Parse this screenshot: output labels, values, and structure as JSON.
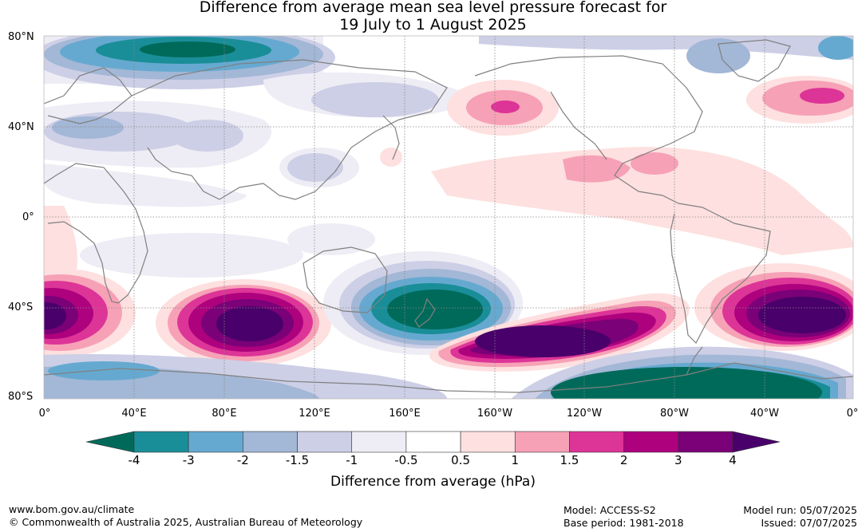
{
  "title": {
    "line1": "Difference from average mean sea level pressure forecast for",
    "line2": "19 July to 1 August 2025"
  },
  "map": {
    "projection": "equirectangular",
    "lat_labels": [
      "80°N",
      "40°N",
      "0°",
      "40°S",
      "80°S"
    ],
    "lon_labels": [
      "0°",
      "40°E",
      "80°E",
      "120°E",
      "160°E",
      "160°W",
      "120°W",
      "80°W",
      "40°W",
      "0°"
    ],
    "grid": true,
    "coastline_color": "#808080",
    "anomaly_regions": [
      {
        "name": "north-atlantic-arctic-low",
        "level": -3.5
      },
      {
        "name": "north-pacific-high",
        "level": 2
      },
      {
        "name": "north-atlantic-high",
        "level": 2.5
      },
      {
        "name": "south-indian-ocean-high",
        "level": 4
      },
      {
        "name": "south-atlantic-high",
        "level": 4
      },
      {
        "name": "south-pacific-high",
        "level": 4
      },
      {
        "name": "new-zealand-low",
        "level": -4
      },
      {
        "name": "antarctic-peninsula-low",
        "level": -4
      }
    ]
  },
  "colorbar": {
    "labels": [
      "-4",
      "-3",
      "-2",
      "-1.5",
      "-1",
      "-0.5",
      "0.5",
      "1",
      "1.5",
      "2",
      "3",
      "4"
    ],
    "colors": {
      "lt_-4": "#006a5a",
      "-4_-3": "#1a8e98",
      "-3_-2": "#66a9d0",
      "-2_-1.5": "#a3b7d6",
      "-1.5_-1": "#cdcfe6",
      "-1_-0.5": "#eeedf5",
      "-0.5_0.5": "#ffffff",
      "0.5_1": "#fde0df",
      "1_1.5": "#f7a1b6",
      "1.5_2": "#dd3497",
      "2_3": "#ae017e",
      "3_4": "#7a0177",
      "gt_4": "#49006a"
    },
    "title": "Difference from average (hPa)"
  },
  "footer": {
    "url": "www.bom.gov.au/climate",
    "copyright": "© Commonwealth of Australia 2025, Australian Bureau of Meteorology",
    "model": "Model: ACCESS-S2",
    "base_period": "Base period: 1981-2018",
    "model_run": "Model run: 05/07/2025",
    "issued": "Issued: 07/07/2025"
  }
}
